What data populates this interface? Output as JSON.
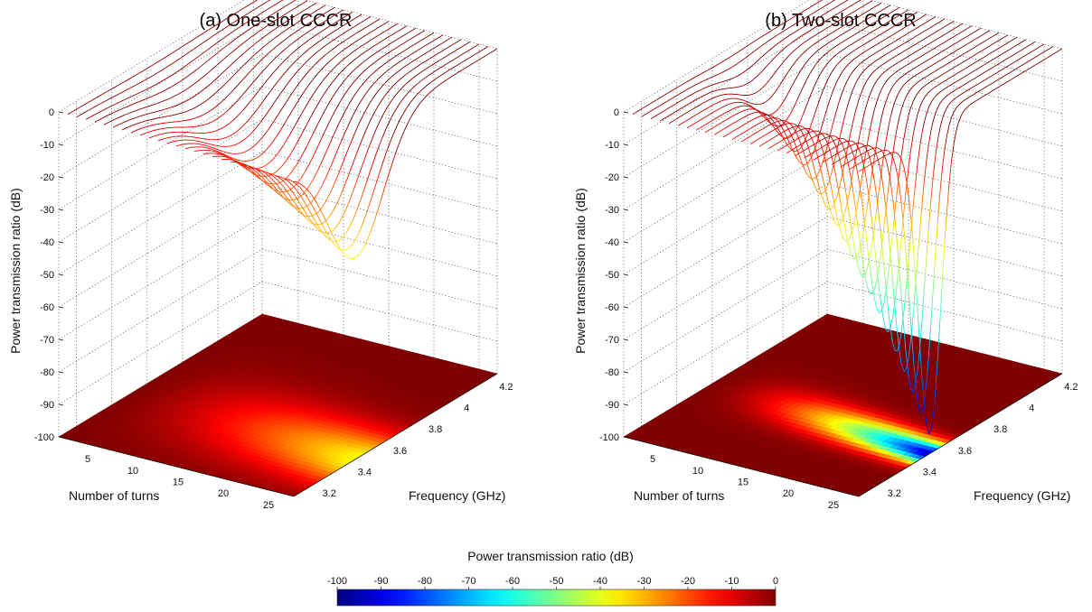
{
  "colorbar": {
    "title": "Power transmission ratio (dB)",
    "ticks": [
      "-100",
      "-90",
      "-80",
      "-70",
      "-60",
      "-50",
      "-40",
      "-30",
      "-20",
      "-10",
      "0"
    ],
    "range": [
      -100,
      0
    ]
  },
  "chart_data": [
    {
      "type": "surface3d",
      "title": "(a) One-slot CCCR",
      "xlabel": "Number of turns",
      "ylabel": "Frequency (GHz)",
      "zlabel": "Power transmission ratio (dB)",
      "xticks": [
        "5",
        "10",
        "15",
        "20",
        "25"
      ],
      "yticks": [
        "3.2",
        "3.4",
        "3.6",
        "3.8",
        "4",
        "4.2"
      ],
      "zticks": [
        "0",
        "-10",
        "-20",
        "-30",
        "-40",
        "-50",
        "-60",
        "-70",
        "-80",
        "-90",
        "-100"
      ],
      "xlim": [
        1,
        27
      ],
      "ylim": [
        3.1,
        4.25
      ],
      "zlim": [
        -100,
        0
      ],
      "series_count": 26,
      "resonance_frequency_ghz": 3.45,
      "min_transmission_db": -38,
      "projection": "filled contour on z = -100 plane",
      "colormap": "jet"
    },
    {
      "type": "surface3d",
      "title": "(b) Two-slot CCCR",
      "xlabel": "Number of turns",
      "ylabel": "Frequency (GHz)",
      "zlabel": "Power transmission ratio (dB)",
      "xticks": [
        "5",
        "10",
        "15",
        "20",
        "25"
      ],
      "yticks": [
        "3.2",
        "3.4",
        "3.6",
        "3.8",
        "4",
        "4.2"
      ],
      "zticks": [
        "0",
        "-10",
        "-20",
        "-30",
        "-40",
        "-50",
        "-60",
        "-70",
        "-80",
        "-90",
        "-100"
      ],
      "xlim": [
        1,
        27
      ],
      "ylim": [
        3.1,
        4.25
      ],
      "zlim": [
        -100,
        0
      ],
      "series_count": 26,
      "resonance_frequency_ghz": 3.5,
      "min_transmission_db": -94,
      "projection": "filled contour on z = -100 plane",
      "colormap": "jet"
    }
  ]
}
